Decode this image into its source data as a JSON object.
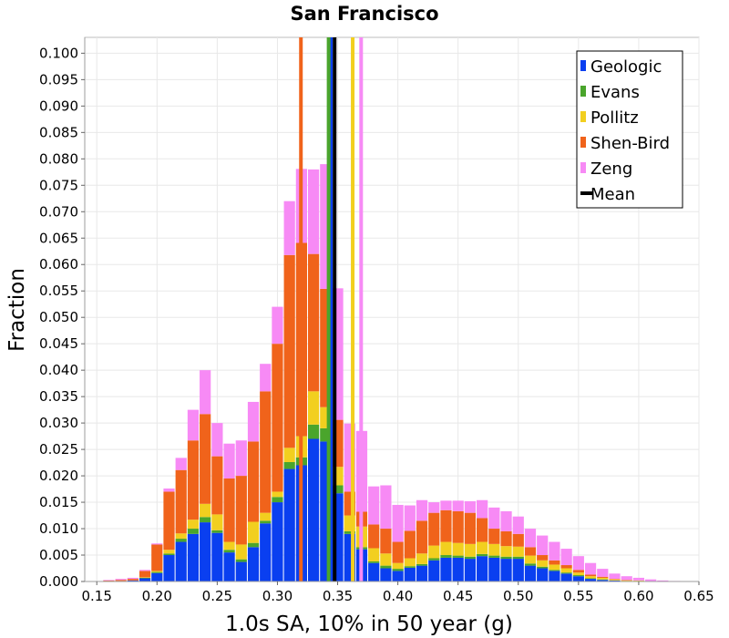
{
  "chart_data": {
    "type": "bar",
    "stacked": true,
    "title": "San Francisco",
    "xlabel": "1.0s SA, 10% in 50 year (g)",
    "ylabel": "Fraction",
    "xlim": [
      0.14,
      0.65
    ],
    "ylim": [
      0.0,
      0.103
    ],
    "bin_width": 0.01,
    "x_ticks": [
      "0.15",
      "0.20",
      "0.25",
      "0.30",
      "0.35",
      "0.40",
      "0.45",
      "0.50",
      "0.55",
      "0.60",
      "0.65"
    ],
    "x_tick_values": [
      0.15,
      0.2,
      0.25,
      0.3,
      0.35,
      0.4,
      0.45,
      0.5,
      0.55,
      0.6,
      0.65
    ],
    "y_ticks": [
      "0.000",
      "0.005",
      "0.010",
      "0.015",
      "0.020",
      "0.025",
      "0.030",
      "0.035",
      "0.040",
      "0.045",
      "0.050",
      "0.055",
      "0.060",
      "0.065",
      "0.070",
      "0.075",
      "0.080",
      "0.085",
      "0.090",
      "0.095",
      "0.100"
    ],
    "y_tick_values": [
      0.0,
      0.005,
      0.01,
      0.015,
      0.02,
      0.025,
      0.03,
      0.035,
      0.04,
      0.045,
      0.05,
      0.055,
      0.06,
      0.065,
      0.07,
      0.075,
      0.08,
      0.085,
      0.09,
      0.095,
      0.1
    ],
    "x": [
      0.16,
      0.17,
      0.18,
      0.19,
      0.2,
      0.21,
      0.22,
      0.23,
      0.24,
      0.25,
      0.26,
      0.27,
      0.28,
      0.29,
      0.3,
      0.31,
      0.32,
      0.33,
      0.34,
      0.35,
      0.36,
      0.37,
      0.38,
      0.39,
      0.4,
      0.41,
      0.42,
      0.43,
      0.44,
      0.45,
      0.46,
      0.47,
      0.48,
      0.49,
      0.5,
      0.51,
      0.52,
      0.53,
      0.54,
      0.55,
      0.56,
      0.57,
      0.58,
      0.59,
      0.6,
      0.61,
      0.62,
      0.63
    ],
    "series": [
      {
        "name": "Geologic",
        "color": "#0a3ff0",
        "values": [
          0.0001,
          0.0001,
          0.0002,
          0.0006,
          0.0016,
          0.005,
          0.0075,
          0.009,
          0.0112,
          0.0092,
          0.0055,
          0.0037,
          0.0065,
          0.011,
          0.015,
          0.0213,
          0.022,
          0.027,
          0.0265,
          0.0167,
          0.009,
          0.0061,
          0.0035,
          0.0025,
          0.002,
          0.0026,
          0.003,
          0.004,
          0.0045,
          0.0045,
          0.0043,
          0.0048,
          0.0045,
          0.0043,
          0.0043,
          0.003,
          0.0025,
          0.002,
          0.0015,
          0.001,
          0.0005,
          0.0003,
          0.0002,
          0.0001,
          0.0001,
          0.0001,
          0.0,
          0.0
        ]
      },
      {
        "name": "Evans",
        "color": "#4aa52c",
        "values": [
          0.0,
          0.0,
          0.0,
          0.0001,
          0.0002,
          0.0003,
          0.0006,
          0.001,
          0.001,
          0.0005,
          0.0005,
          0.0005,
          0.0008,
          0.0005,
          0.001,
          0.0013,
          0.0015,
          0.0027,
          0.0025,
          0.0015,
          0.0005,
          0.0004,
          0.0003,
          0.0005,
          0.0004,
          0.0003,
          0.0003,
          0.0004,
          0.0005,
          0.0004,
          0.0004,
          0.0004,
          0.0004,
          0.0004,
          0.0004,
          0.0004,
          0.0003,
          0.0002,
          0.0002,
          0.0002,
          0.0001,
          0.0001,
          0.0,
          0.0,
          0.0,
          0.0,
          0.0,
          0.0
        ]
      },
      {
        "name": "Pollitz",
        "color": "#f2cf1f",
        "values": [
          0.0,
          0.0,
          0.0,
          0.0001,
          0.0002,
          0.0007,
          0.001,
          0.0017,
          0.0025,
          0.003,
          0.0015,
          0.0028,
          0.004,
          0.0015,
          0.001,
          0.0027,
          0.004,
          0.0063,
          0.004,
          0.0035,
          0.003,
          0.0039,
          0.0025,
          0.0023,
          0.0011,
          0.0015,
          0.002,
          0.0024,
          0.0025,
          0.0024,
          0.0024,
          0.0023,
          0.0022,
          0.002,
          0.0019,
          0.0015,
          0.0012,
          0.001,
          0.0008,
          0.0005,
          0.0004,
          0.0003,
          0.0002,
          0.0001,
          0.0001,
          0.0,
          0.0,
          0.0
        ]
      },
      {
        "name": "Shen-Bird",
        "color": "#f0631b",
        "values": [
          0.0001,
          0.0002,
          0.0003,
          0.0012,
          0.005,
          0.011,
          0.012,
          0.015,
          0.017,
          0.011,
          0.012,
          0.013,
          0.0152,
          0.023,
          0.028,
          0.0365,
          0.0366,
          0.026,
          0.0224,
          0.0089,
          0.0045,
          0.0028,
          0.0045,
          0.0047,
          0.004,
          0.0052,
          0.0062,
          0.0062,
          0.006,
          0.006,
          0.0059,
          0.0045,
          0.0029,
          0.0028,
          0.0024,
          0.0016,
          0.001,
          0.0008,
          0.0006,
          0.0005,
          0.0003,
          0.0002,
          0.0001,
          0.0001,
          0.0,
          0.0,
          0.0,
          0.0
        ]
      },
      {
        "name": "Zeng",
        "color": "#f78af5",
        "values": [
          0.0001,
          0.0002,
          0.0002,
          0.0002,
          0.0002,
          0.0006,
          0.0023,
          0.0058,
          0.0083,
          0.0063,
          0.0066,
          0.0067,
          0.0075,
          0.0052,
          0.007,
          0.0102,
          0.014,
          0.016,
          0.0236,
          0.0249,
          0.0129,
          0.0153,
          0.0072,
          0.0082,
          0.007,
          0.0048,
          0.0039,
          0.002,
          0.0018,
          0.002,
          0.0022,
          0.0034,
          0.004,
          0.0038,
          0.0033,
          0.0035,
          0.0037,
          0.0035,
          0.0031,
          0.0026,
          0.0022,
          0.0015,
          0.001,
          0.0007,
          0.0005,
          0.0003,
          0.0002,
          0.0001
        ]
      }
    ],
    "vertical_lines": [
      {
        "name": "Geologic",
        "color": "#0a3ff0",
        "x": 0.3445
      },
      {
        "name": "Evans",
        "color": "#4aa52c",
        "x": 0.3425
      },
      {
        "name": "Pollitz",
        "color": "#f2cf1f",
        "x": 0.3625
      },
      {
        "name": "Shen-Bird",
        "color": "#f0631b",
        "x": 0.3195
      },
      {
        "name": "Zeng",
        "color": "#f78af5",
        "x": 0.3695
      },
      {
        "name": "Mean",
        "color": "#000000",
        "x": 0.3475
      }
    ],
    "legend": {
      "position": "top-right",
      "entries": [
        {
          "label": "Geologic",
          "color": "#0a3ff0"
        },
        {
          "label": "Evans",
          "color": "#4aa52c"
        },
        {
          "label": "Pollitz",
          "color": "#f2cf1f"
        },
        {
          "label": "Shen-Bird",
          "color": "#f0631b"
        },
        {
          "label": "Zeng",
          "color": "#f78af5"
        },
        {
          "label": "Mean",
          "color": "#000000"
        }
      ]
    },
    "grid": true
  }
}
